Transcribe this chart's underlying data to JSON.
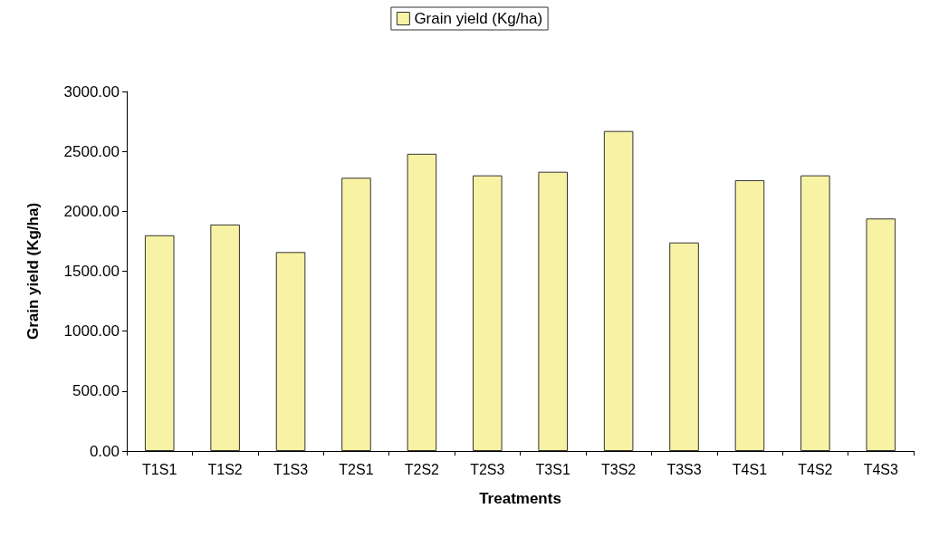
{
  "chart_data": {
    "type": "bar",
    "xlabel": "Treatments",
    "ylabel": "Grain yield (Kg/ha)",
    "categories": [
      "T1S1",
      "T1S2",
      "T1S3",
      "T2S1",
      "T2S2",
      "T2S3",
      "T3S1",
      "T3S2",
      "T3S3",
      "T4S1",
      "T4S2",
      "T4S3"
    ],
    "series": [
      {
        "name": "Grain yield (Kg/ha)",
        "color": "#f8f2a4",
        "values": [
          1800,
          1890,
          1660,
          2280,
          2480,
          2300,
          2330,
          2670,
          1740,
          2260,
          2300,
          1940
        ]
      }
    ],
    "ylim": [
      0,
      3000
    ],
    "yticks": [
      {
        "value": 0,
        "label": "0.00"
      },
      {
        "value": 500,
        "label": "500.00"
      },
      {
        "value": 1000,
        "label": "1000.00"
      },
      {
        "value": 1500,
        "label": "1500.00"
      },
      {
        "value": 2000,
        "label": "2000.00"
      },
      {
        "value": 2500,
        "label": "2500.00"
      },
      {
        "value": 3000,
        "label": "3000.00"
      }
    ],
    "grid": false,
    "legend": "top"
  }
}
